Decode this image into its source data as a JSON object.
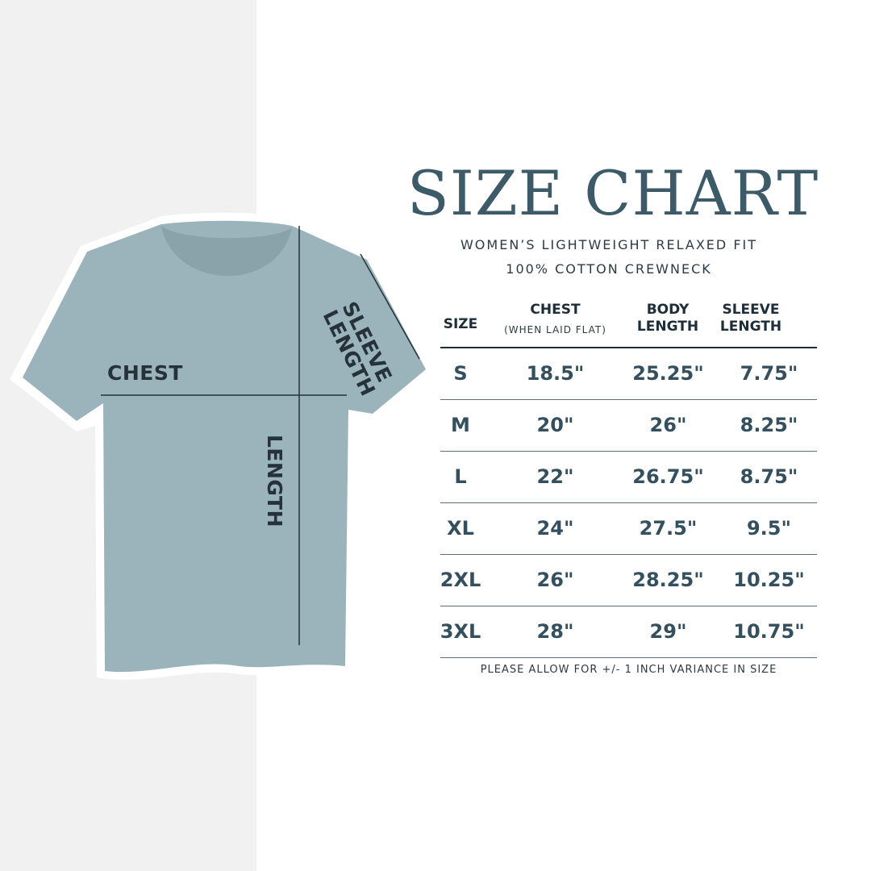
{
  "title": "SIZE CHART",
  "subtitle_line1": "WOMEN’S LIGHTWEIGHT RELAXED FIT",
  "subtitle_line2": "100% COTTON CREWNECK",
  "diagram_labels": {
    "chest": "CHEST",
    "length": "LENGTH",
    "sleeve_line1": "SLEEVE",
    "sleeve_line2": "LENGTH"
  },
  "colors": {
    "shirt": "#9bb3ba",
    "title": "#3d5a68",
    "values": "#34505e",
    "left_panel": "#f1f1f1"
  },
  "table": {
    "headers": {
      "size": "SIZE",
      "chest": "CHEST",
      "chest_note": "(WHEN LAID FLAT)",
      "body_1": "BODY",
      "body_2": "LENGTH",
      "sleeve_1": "SLEEVE",
      "sleeve_2": "LENGTH"
    },
    "rows": [
      {
        "size": "S",
        "chest": "18.5\"",
        "body": "25.25\"",
        "sleeve": "7.75\""
      },
      {
        "size": "M",
        "chest": "20\"",
        "body": "26\"",
        "sleeve": "8.25\""
      },
      {
        "size": "L",
        "chest": "22\"",
        "body": "26.75\"",
        "sleeve": "8.75\""
      },
      {
        "size": "XL",
        "chest": "24\"",
        "body": "27.5\"",
        "sleeve": "9.5\""
      },
      {
        "size": "2XL",
        "chest": "26\"",
        "body": "28.25\"",
        "sleeve": "10.25\""
      },
      {
        "size": "3XL",
        "chest": "28\"",
        "body": "29\"",
        "sleeve": "10.75\""
      }
    ]
  },
  "note": "PLEASE ALLOW FOR +/- 1 INCH VARIANCE IN SIZE"
}
